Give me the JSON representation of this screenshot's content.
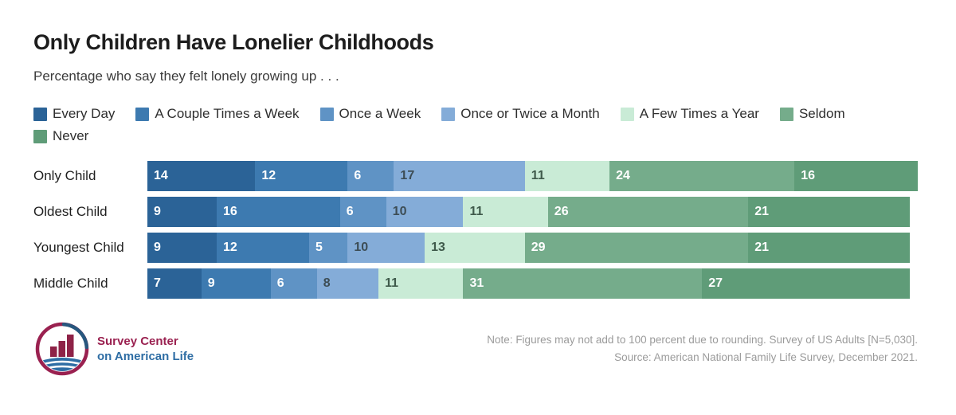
{
  "chart_data": {
    "type": "bar",
    "variant": "horizontal-stacked",
    "title": "Only Children Have Lonelier Childhoods",
    "subtitle": "Percentage who say they felt lonely growing up . . .",
    "xlim": [
      0,
      100
    ],
    "legend_position": "top",
    "grid": false,
    "series": [
      {
        "name": "Every Day",
        "color": "#2b6397",
        "label_color": "#ffffff"
      },
      {
        "name": "A Couple Times a Week",
        "color": "#3d7ab0",
        "label_color": "#ffffff"
      },
      {
        "name": "Once a Week",
        "color": "#5f93c5",
        "label_color": "#ffffff"
      },
      {
        "name": "Once or Twice a Month",
        "color": "#84acd8",
        "label_color": "#3d4d55"
      },
      {
        "name": "A Few Times a Year",
        "color": "#c9ebd6",
        "label_color": "#3f5a4b"
      },
      {
        "name": "Seldom",
        "color": "#75ac8b",
        "label_color": "#ffffff"
      },
      {
        "name": "Never",
        "color": "#5f9c78",
        "label_color": "#ffffff"
      }
    ],
    "legend_rows": [
      [
        "Every Day",
        "A Couple Times a Week",
        "Once a Week",
        "Once or Twice a Month",
        "A Few Times a Year",
        "Seldom"
      ],
      [
        "Never"
      ]
    ],
    "categories": [
      "Only Child",
      "Oldest Child",
      "Youngest Child",
      "Middle Child"
    ],
    "rows": [
      {
        "category": "Only Child",
        "values": [
          14,
          12,
          6,
          17,
          11,
          24,
          16
        ]
      },
      {
        "category": "Oldest Child",
        "values": [
          9,
          16,
          6,
          10,
          11,
          26,
          21
        ]
      },
      {
        "category": "Youngest Child",
        "values": [
          9,
          12,
          5,
          10,
          13,
          29,
          21
        ]
      },
      {
        "category": "Middle Child",
        "values": [
          7,
          9,
          6,
          8,
          11,
          31,
          27
        ]
      }
    ]
  },
  "footer": {
    "logo_line1": "Survey Center",
    "logo_line2": "on American Life",
    "logo_colors": {
      "maroon": "#9a2150",
      "bar_maroon": "#8e2247",
      "blue": "#2e6da4",
      "dark_blue": "#27577e"
    },
    "note": "Note: Figures may not add to 100 percent due to rounding. Survey of US Adults [N=5,030].",
    "source": "Source: American National Family Life Survey, December 2021."
  }
}
